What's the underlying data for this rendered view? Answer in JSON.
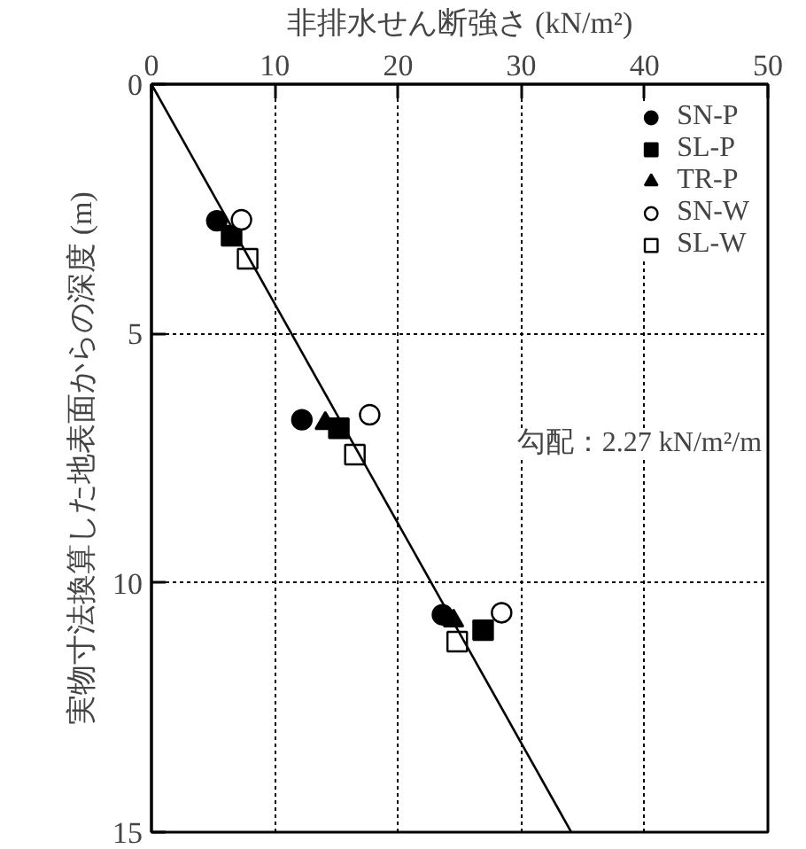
{
  "chart_data": {
    "type": "scatter",
    "xlabel": "非排水せん断強さ (kN/m²)",
    "ylabel": "実物寸法換算した地表面からの深度 (m)",
    "xlim": [
      0,
      50
    ],
    "xticks": [
      0,
      10,
      20,
      30,
      40,
      50
    ],
    "ylim": [
      15,
      0
    ],
    "yticks": [
      0,
      5,
      10,
      15
    ],
    "grid": true,
    "legend": "top right",
    "annotations": [
      "勾配：2.27 kN/m²/m"
    ],
    "series": [
      {
        "name": "SN-P",
        "color": "#000000",
        "marker": "circle",
        "x": [
          5.3,
          12.2,
          23.6
        ],
        "values": [
          2.74,
          6.73,
          10.64
        ]
      },
      {
        "name": "SL-P",
        "color": "#000000",
        "marker": "square",
        "x": [
          6.5,
          15.2,
          26.9
        ],
        "values": [
          3.04,
          6.9,
          10.95
        ]
      },
      {
        "name": "TR-P",
        "color": "#000000",
        "marker": "triangle",
        "x": [
          null,
          14.1,
          24.5
        ],
        "values": [
          null,
          6.8,
          10.76
        ]
      },
      {
        "name": "SN-W",
        "color": "#ffffff",
        "marker": "circle",
        "x": [
          7.3,
          17.7,
          28.4
        ],
        "values": [
          2.72,
          6.63,
          10.6
        ]
      },
      {
        "name": "SL-W",
        "color": "#ffffff",
        "marker": "square",
        "x": [
          7.8,
          16.5,
          24.8
        ],
        "values": [
          3.5,
          7.43,
          11.18
        ]
      },
      {
        "type": "line",
        "color": "#000000",
        "x": [
          0,
          34.05
        ],
        "values": [
          0,
          15
        ]
      }
    ]
  }
}
